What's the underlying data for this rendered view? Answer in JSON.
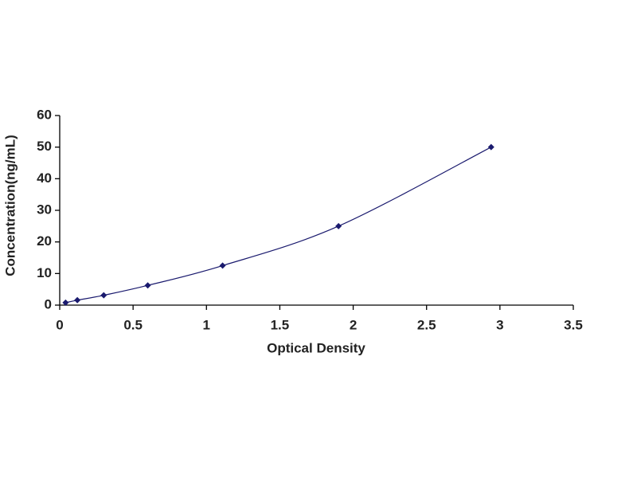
{
  "chart_data": {
    "type": "scatter",
    "x_label": "Optical Density",
    "y_label": "Concentration(ng/mL)",
    "x": [
      0.04,
      0.12,
      0.3,
      0.6,
      1.11,
      1.9,
      2.94
    ],
    "series": [
      {
        "color": "#1a1a6e",
        "values": [
          0.78,
          1.56,
          3.12,
          6.25,
          12.5,
          25,
          50
        ]
      }
    ],
    "xlim": [
      0,
      3.5
    ],
    "xticks": [
      0,
      0.5,
      1,
      1.5,
      2,
      2.5,
      3,
      3.5
    ],
    "ylim": [
      0,
      60
    ],
    "yticks": [
      0,
      10,
      20,
      30,
      40,
      50,
      60
    ],
    "grid": false,
    "trendline": true
  }
}
